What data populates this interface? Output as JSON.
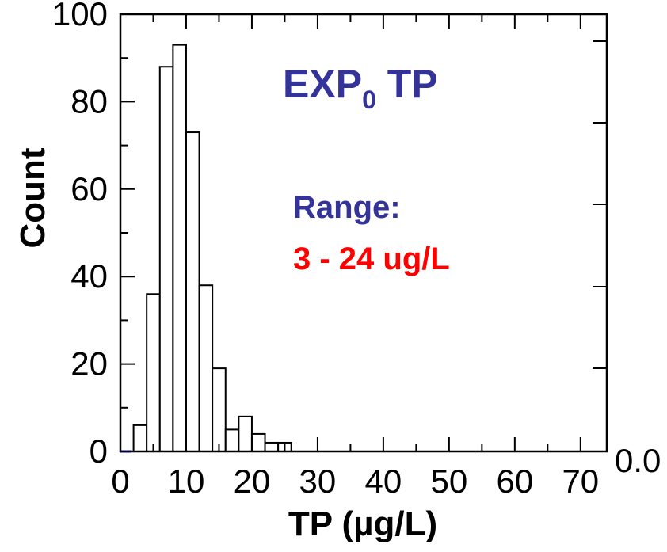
{
  "chart_data": {
    "type": "bar",
    "subtype": "histogram",
    "xlabel": "TP (µg/L)",
    "ylabel": "Count",
    "xlim": [
      0,
      74
    ],
    "ylim": [
      0,
      100
    ],
    "x_ticks": [
      "0",
      "10",
      "20",
      "30",
      "40",
      "50",
      "60",
      "70"
    ],
    "y_ticks": [
      "0",
      "20",
      "40",
      "60",
      "80",
      "100"
    ],
    "right_axis_label": "0.0",
    "bin_width": 2,
    "bins": [
      {
        "x0": 2,
        "x1": 4,
        "count": 6
      },
      {
        "x0": 4,
        "x1": 6,
        "count": 36
      },
      {
        "x0": 6,
        "x1": 8,
        "count": 88
      },
      {
        "x0": 8,
        "x1": 10,
        "count": 93
      },
      {
        "x0": 10,
        "x1": 12,
        "count": 73
      },
      {
        "x0": 12,
        "x1": 14,
        "count": 38
      },
      {
        "x0": 14,
        "x1": 16,
        "count": 19
      },
      {
        "x0": 16,
        "x1": 18,
        "count": 5
      },
      {
        "x0": 18,
        "x1": 20,
        "count": 8
      },
      {
        "x0": 20,
        "x1": 22,
        "count": 4
      },
      {
        "x0": 22,
        "x1": 24,
        "count": 2
      },
      {
        "x0": 24,
        "x1": 26,
        "count": 2
      }
    ],
    "grid": false,
    "annotations": {
      "title_main": "EXP",
      "title_sub": "0",
      "title_suffix": " TP",
      "range_label": "Range:",
      "range_value": "3 - 24 ug/L"
    },
    "colors": {
      "title": "#333399",
      "range_label": "#333399",
      "range_value": "#ff0000",
      "bar_fill": "#ffffff",
      "bar_stroke": "#000000"
    }
  }
}
